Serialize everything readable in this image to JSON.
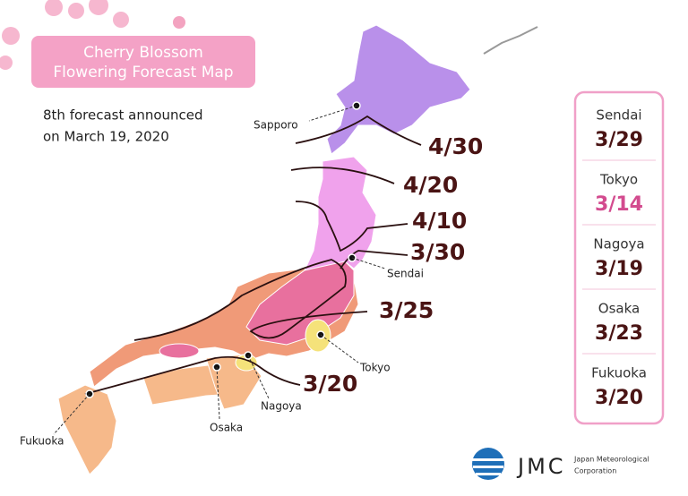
{
  "header": {
    "title": [
      "Cherry Blossom",
      "Flowering Forecast Map"
    ],
    "subtitle": [
      "8th forecast announced",
      "on March 19, 2020"
    ]
  },
  "isolines": [
    "4/30",
    "4/20",
    "4/10",
    "3/30",
    "3/25",
    "3/20"
  ],
  "cities": [
    "Sapporo",
    "Sendai",
    "Tokyo",
    "Nagoya",
    "Osaka",
    "Fukuoka"
  ],
  "panel": [
    {
      "city": "Sendai",
      "date": "3/29"
    },
    {
      "city": "Tokyo",
      "date": "3/14"
    },
    {
      "city": "Nagoya",
      "date": "3/19"
    },
    {
      "city": "Osaka",
      "date": "3/23"
    },
    {
      "city": "Fukuoka",
      "date": "3/20"
    }
  ],
  "logo": {
    "mark": "JMC",
    "name": [
      "Japan Meteorological",
      "Corporation"
    ]
  }
}
